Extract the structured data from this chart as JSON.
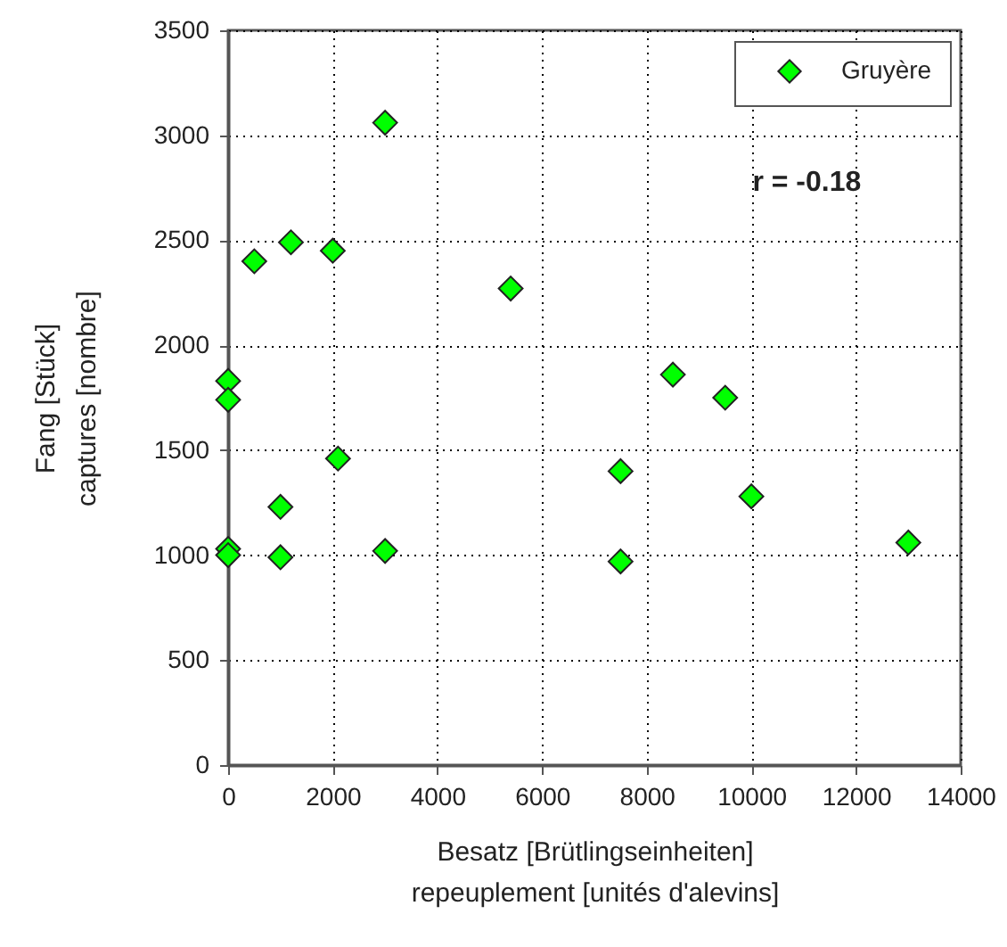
{
  "chart_data": {
    "type": "scatter",
    "xlabel": "Besatz [Brütlingseinheiten]\nrepeuplement [unités d'alevins]",
    "ylabel": "Fang [Stück]\ncaptures [nombre]",
    "x": [
      0,
      0,
      0,
      0,
      500,
      1200,
      2000,
      3000,
      5400,
      1000,
      2100,
      1000,
      3000,
      7500,
      7500,
      8500,
      9500,
      10000,
      13000
    ],
    "series": [
      {
        "name": "Gruyère",
        "color": "#00ff00",
        "values": [
          1830,
          1740,
          1030,
          1000,
          2400,
          2490,
          2450,
          3060,
          2270,
          1230,
          1460,
          990,
          1020,
          1400,
          970,
          1860,
          1750,
          1280,
          1060
        ]
      }
    ],
    "xlim": [
      0,
      14000
    ],
    "ylim": [
      0,
      3500
    ],
    "xticks": [
      0,
      2000,
      4000,
      6000,
      8000,
      10000,
      12000,
      14000
    ],
    "yticks": [
      0,
      500,
      1000,
      1500,
      2000,
      2500,
      3000,
      3500
    ],
    "grid": true,
    "legend": "top right",
    "marker": "diamond",
    "annotations": [
      "r = -0.18"
    ]
  }
}
